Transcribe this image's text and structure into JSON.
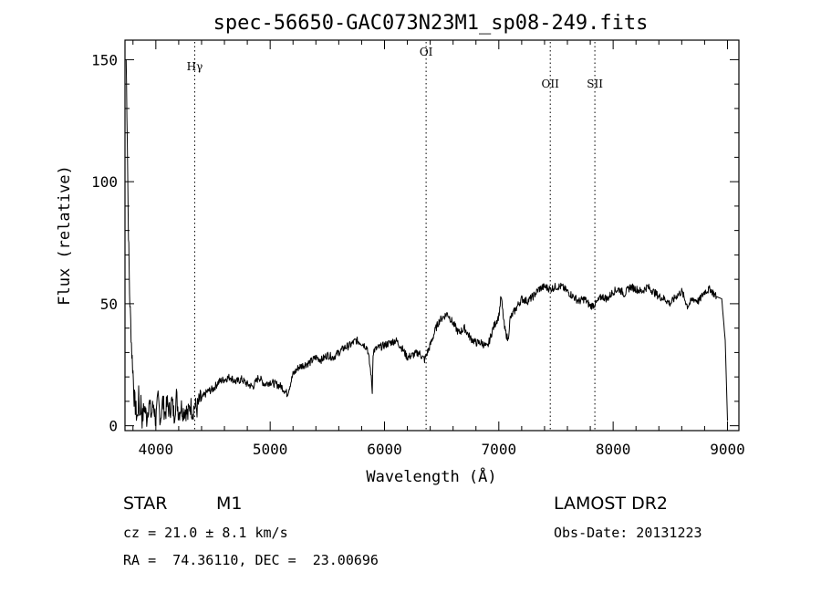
{
  "chart_data": {
    "type": "line",
    "title": "spec-56650-GAC073N23M1_sp08-249.fits",
    "xlabel": "Wavelength (Å)",
    "ylabel": "Flux (relative)",
    "xlim": [
      3730,
      9100
    ],
    "ylim": [
      -2,
      158
    ],
    "xticks": [
      4000,
      5000,
      6000,
      7000,
      8000,
      9000
    ],
    "yticks": [
      0,
      50,
      100,
      150
    ],
    "grid": false,
    "line_color": "#000000",
    "lines": [
      {
        "label": "Hγ",
        "x": 4340
      },
      {
        "label": "OI",
        "x": 6364
      },
      {
        "label": "OII",
        "x": 7450
      },
      {
        "label": "SII",
        "x": 7840
      }
    ],
    "series": [
      {
        "x": [
          3740,
          3750,
          3760,
          3770,
          3780,
          3790,
          3800,
          3810,
          3820,
          3830,
          3840,
          3850,
          3860,
          3870,
          3880,
          3900,
          3920,
          3940,
          3960,
          3980,
          4000,
          4020,
          4040,
          4060,
          4080,
          4100,
          4120,
          4140,
          4160,
          4180,
          4200,
          4220,
          4240,
          4260,
          4280,
          4300,
          4320,
          4340,
          4360,
          4380,
          4400,
          4450,
          4500,
          4550,
          4600,
          4650,
          4700,
          4750,
          4800,
          4850,
          4900,
          4950,
          5000,
          5050,
          5100,
          5150,
          5200,
          5250,
          5300,
          5350,
          5400,
          5450,
          5500,
          5550,
          5600,
          5650,
          5700,
          5750,
          5800,
          5850,
          5880,
          5893,
          5900,
          5910,
          5950,
          6000,
          6050,
          6100,
          6150,
          6200,
          6250,
          6300,
          6350,
          6400,
          6450,
          6480,
          6500,
          6550,
          6600,
          6650,
          6700,
          6750,
          6800,
          6850,
          6900,
          6950,
          7000,
          7020,
          7050,
          7080,
          7100,
          7150,
          7200,
          7250,
          7300,
          7350,
          7400,
          7450,
          7500,
          7550,
          7600,
          7650,
          7700,
          7750,
          7800,
          7850,
          7900,
          7950,
          8000,
          8050,
          8100,
          8150,
          8200,
          8250,
          8300,
          8350,
          8400,
          8450,
          8500,
          8550,
          8600,
          8650,
          8700,
          8750,
          8800,
          8850,
          8900,
          8950,
          8980,
          9000
        ],
        "values": [
          150,
          120,
          80,
          55,
          42,
          30,
          22,
          12,
          8,
          5,
          3,
          12,
          4,
          10,
          2,
          8,
          3,
          10,
          4,
          9,
          2,
          11,
          3,
          10,
          5,
          9,
          6,
          10,
          4,
          12,
          5,
          8,
          6,
          7,
          4,
          9,
          6,
          8,
          7,
          10,
          11,
          14,
          15,
          18,
          19,
          20,
          18,
          19,
          17,
          16,
          20,
          17,
          18,
          17,
          16,
          13,
          21,
          24,
          25,
          26,
          28,
          27,
          29,
          28,
          30,
          32,
          33,
          35,
          34,
          32,
          22,
          14,
          30,
          31,
          32,
          33,
          34,
          35,
          32,
          28,
          29,
          30,
          27,
          33,
          40,
          43,
          44,
          46,
          42,
          38,
          40,
          36,
          34,
          34,
          32,
          40,
          45,
          53,
          40,
          35,
          44,
          48,
          52,
          51,
          53,
          56,
          57,
          56,
          57,
          57,
          55,
          53,
          51,
          52,
          49,
          50,
          53,
          52,
          55,
          56,
          54,
          57,
          56,
          55,
          57,
          55,
          53,
          52,
          50,
          53,
          55,
          49,
          52,
          51,
          55,
          56,
          53,
          52,
          35,
          2
        ]
      }
    ]
  },
  "info": {
    "object_class": "STAR",
    "subclass": "M1",
    "survey": "LAMOST DR2",
    "cz": "cz = 21.0 ± 8.1 km/s",
    "obs_date": "Obs-Date: 20131223",
    "coords": "RA =  74.36110, DEC =  23.00696"
  }
}
